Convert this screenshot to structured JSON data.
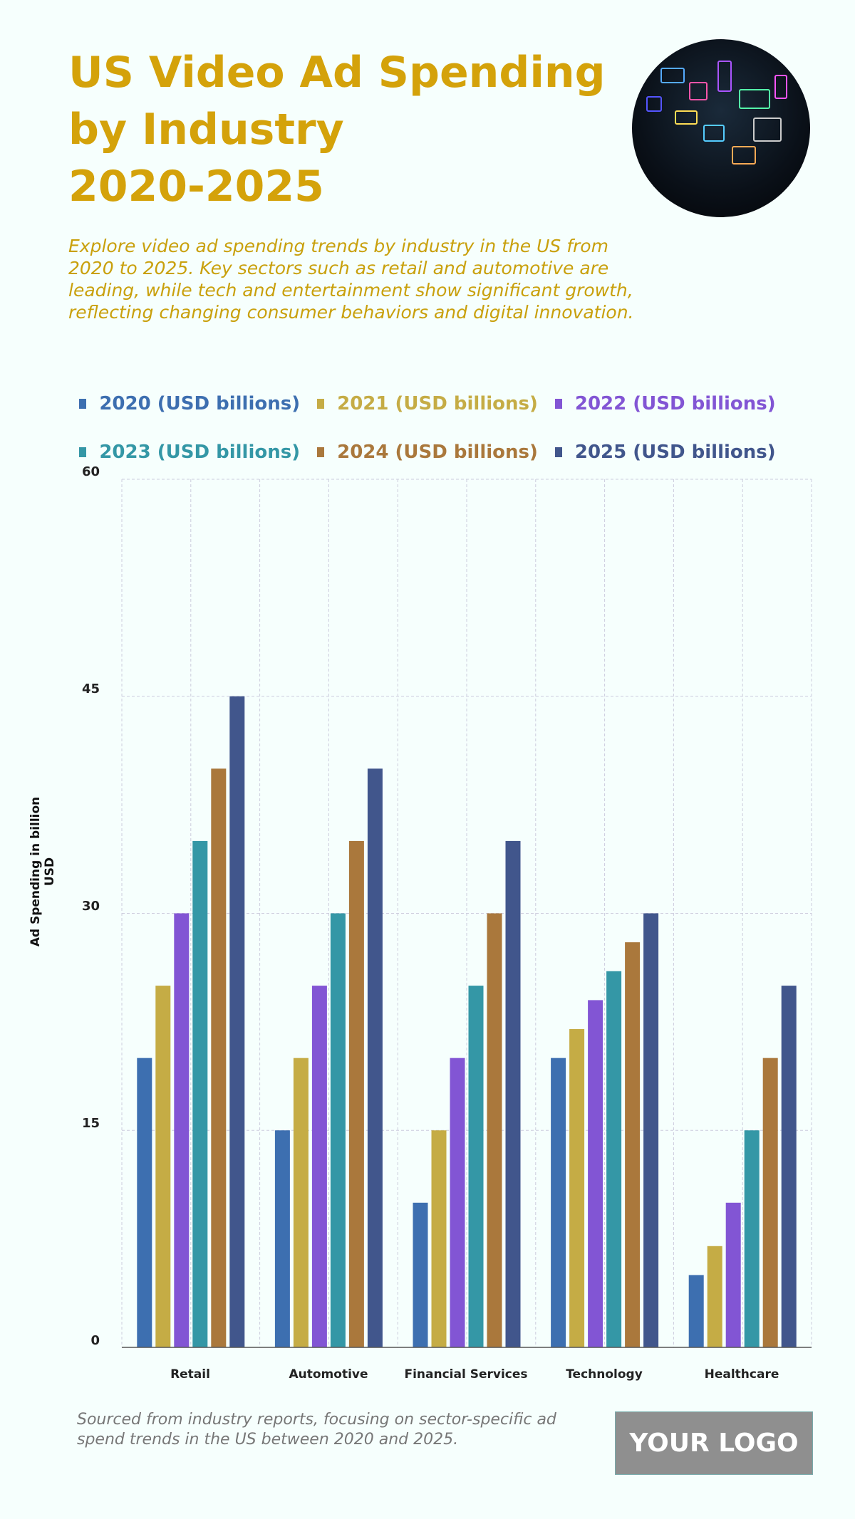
{
  "header": {
    "title_lines": [
      "US Video Ad Spending",
      "by Industry",
      "2020-2025"
    ],
    "subtitle": "Explore video ad spending trends by industry in the US from 2020 to 2025. Key sectors such as retail and automotive are leading, while tech and entertainment show significant growth, reflecting changing consumer behaviors and digital innovation."
  },
  "footer": {
    "source": "Sourced from industry reports, focusing on sector-specific ad spend trends in the US between 2020 and 2025.",
    "logo": "YOUR LOGO"
  },
  "chart_data": {
    "type": "bar",
    "ylabel": "Ad Spending in billion USD",
    "xlabel": "",
    "ylim": [
      0,
      60
    ],
    "yticks": [
      "0",
      "15",
      "30",
      "45",
      "60"
    ],
    "grid": true,
    "legend_position": "top",
    "categories": [
      "Retail",
      "Automotive",
      "Financial Services",
      "Technology",
      "Healthcare"
    ],
    "series": [
      {
        "name": "2020 (USD billions)",
        "color": "#3d6fb0",
        "values": [
          20,
          15,
          10,
          20,
          5
        ]
      },
      {
        "name": "2021 (USD billions)",
        "color": "#c5ac45",
        "values": [
          25,
          20,
          15,
          22,
          7
        ]
      },
      {
        "name": "2022 (USD billions)",
        "color": "#8255d4",
        "values": [
          30,
          25,
          20,
          24,
          10
        ]
      },
      {
        "name": "2023 (USD billions)",
        "color": "#3497a6",
        "values": [
          35,
          30,
          25,
          26,
          15
        ]
      },
      {
        "name": "2024 (USD billions)",
        "color": "#aa783c",
        "values": [
          40,
          35,
          30,
          28,
          20
        ]
      },
      {
        "name": "2025 (USD billions)",
        "color": "#41568c",
        "values": [
          45,
          40,
          35,
          30,
          25
        ]
      }
    ]
  }
}
